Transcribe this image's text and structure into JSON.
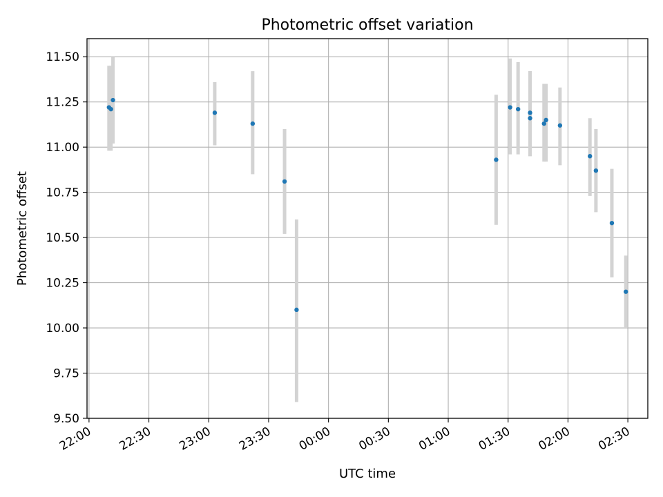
{
  "chart_data": {
    "type": "scatter",
    "title": "Photometric offset variation",
    "xlabel": "UTC time",
    "ylabel": "Photometric offset",
    "xlim": [
      "21:59",
      "02:40"
    ],
    "ylim": [
      9.5,
      11.6
    ],
    "grid": true,
    "x_ticks": [
      "22:00",
      "22:30",
      "23:00",
      "23:30",
      "00:00",
      "00:30",
      "01:00",
      "01:30",
      "02:00",
      "02:30"
    ],
    "y_ticks": [
      "9.50",
      "9.75",
      "10.00",
      "10.25",
      "10.50",
      "10.75",
      "11.00",
      "11.25",
      "11.50"
    ],
    "point_color": "#1f77b4",
    "errorbar_color": "#d3d3d3",
    "points": [
      {
        "time": "22:10",
        "y": 11.22,
        "ylow": 10.98,
        "yhigh": 11.45
      },
      {
        "time": "22:11",
        "y": 11.21,
        "ylow": 10.98,
        "yhigh": 11.45
      },
      {
        "time": "22:12",
        "y": 11.26,
        "ylow": 11.02,
        "yhigh": 11.5
      },
      {
        "time": "23:03",
        "y": 11.19,
        "ylow": 11.01,
        "yhigh": 11.36
      },
      {
        "time": "23:22",
        "y": 11.13,
        "ylow": 10.85,
        "yhigh": 11.42
      },
      {
        "time": "23:38",
        "y": 10.81,
        "ylow": 10.52,
        "yhigh": 11.1
      },
      {
        "time": "23:44",
        "y": 10.1,
        "ylow": 9.59,
        "yhigh": 10.6
      },
      {
        "time": "01:24",
        "y": 10.93,
        "ylow": 10.57,
        "yhigh": 11.29
      },
      {
        "time": "01:31",
        "y": 11.22,
        "ylow": 10.96,
        "yhigh": 11.49
      },
      {
        "time": "01:35",
        "y": 11.21,
        "ylow": 10.96,
        "yhigh": 11.47
      },
      {
        "time": "01:41",
        "y": 11.19,
        "ylow": 10.95,
        "yhigh": 11.42
      },
      {
        "time": "01:41",
        "y": 11.16,
        "ylow": 10.95,
        "yhigh": 11.42
      },
      {
        "time": "01:48",
        "y": 11.13,
        "ylow": 10.92,
        "yhigh": 11.35
      },
      {
        "time": "01:49",
        "y": 11.15,
        "ylow": 10.92,
        "yhigh": 11.35
      },
      {
        "time": "01:56",
        "y": 11.12,
        "ylow": 10.9,
        "yhigh": 11.33
      },
      {
        "time": "02:11",
        "y": 10.95,
        "ylow": 10.73,
        "yhigh": 11.16
      },
      {
        "time": "02:14",
        "y": 10.87,
        "ylow": 10.64,
        "yhigh": 11.1
      },
      {
        "time": "02:22",
        "y": 10.58,
        "ylow": 10.28,
        "yhigh": 10.88
      },
      {
        "time": "02:29",
        "y": 10.2,
        "ylow": 10.0,
        "yhigh": 10.4
      }
    ]
  }
}
